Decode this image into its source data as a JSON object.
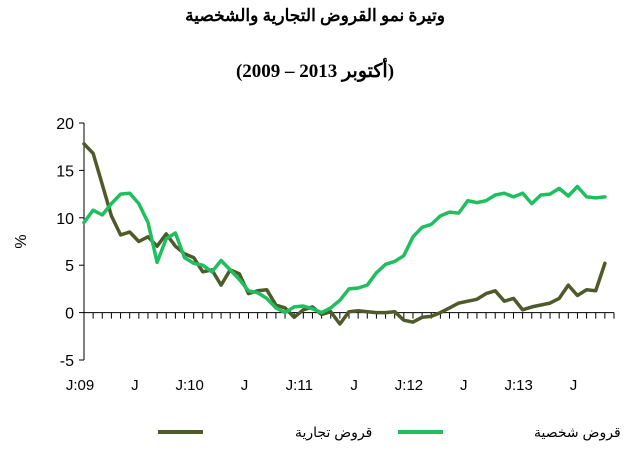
{
  "title_line1": "وتيرة نمو القروض التجارية والشخصية",
  "title_line2": "(2009 – أكتوبر 2013)",
  "chart_data": {
    "type": "line",
    "title": "وتيرة نمو القروض التجارية والشخصية (2009 – أكتوبر 2013)",
    "ylabel": "%",
    "xlabel": "",
    "ylim": [
      -5,
      20
    ],
    "yticks": [
      "20",
      "15",
      "10",
      "5",
      "0",
      "-5"
    ],
    "yticks_values": [
      20,
      15,
      10,
      5,
      0,
      -5
    ],
    "xlim": [
      0,
      58
    ],
    "xticks": [
      {
        "label": "J:09",
        "x": 0
      },
      {
        "label": "J",
        "x": 6
      },
      {
        "label": "J:10",
        "x": 12
      },
      {
        "label": "J",
        "x": 18
      },
      {
        "label": "J:11",
        "x": 24
      },
      {
        "label": "J",
        "x": 30
      },
      {
        "label": "J:12",
        "x": 36
      },
      {
        "label": "J",
        "x": 42
      },
      {
        "label": "J:13",
        "x": 48
      },
      {
        "label": "J",
        "x": 54
      }
    ],
    "grid": false,
    "legend_position": "bottom",
    "series": [
      {
        "name": "قروض تجارية",
        "color": "#4f5a2a",
        "x": [
          0,
          1,
          2,
          3,
          4,
          5,
          6,
          7,
          8,
          9,
          10,
          11,
          12,
          13,
          14,
          15,
          16,
          17,
          18,
          19,
          20,
          21,
          22,
          23,
          24,
          25,
          26,
          27,
          28,
          29,
          30,
          31,
          32,
          33,
          34,
          35,
          36,
          37,
          38,
          39,
          40,
          41,
          42,
          43,
          44,
          45,
          46,
          47,
          48,
          49,
          50,
          51,
          52,
          53,
          54,
          55,
          56,
          57
        ],
        "values": [
          17.8,
          16.8,
          13.5,
          10.2,
          8.2,
          8.5,
          7.5,
          8.0,
          7.0,
          8.3,
          7.0,
          6.2,
          5.8,
          4.3,
          4.5,
          2.9,
          4.5,
          4.1,
          2.0,
          2.3,
          2.4,
          0.8,
          0.5,
          -0.5,
          0.3,
          0.6,
          -0.2,
          0.1,
          -1.2,
          0.1,
          0.2,
          0.1,
          0.0,
          0.0,
          0.1,
          -0.8,
          -1.0,
          -0.5,
          -0.4,
          0.0,
          0.5,
          1.0,
          1.2,
          1.4,
          2.0,
          2.3,
          1.2,
          1.5,
          0.3,
          0.6,
          0.8,
          1.0,
          1.5,
          2.9,
          1.8,
          2.4,
          2.3,
          5.2
        ]
      },
      {
        "name": "قروض شخصية",
        "color": "#1fbf5f",
        "x": [
          0,
          1,
          2,
          3,
          4,
          5,
          6,
          7,
          8,
          9,
          10,
          11,
          12,
          13,
          14,
          15,
          16,
          17,
          18,
          19,
          20,
          21,
          22,
          23,
          24,
          25,
          26,
          27,
          28,
          29,
          30,
          31,
          32,
          33,
          34,
          35,
          36,
          37,
          38,
          39,
          40,
          41,
          42,
          43,
          44,
          45,
          46,
          47,
          48,
          49,
          50,
          51,
          52,
          53,
          54,
          55,
          56,
          57
        ],
        "values": [
          9.5,
          10.8,
          10.3,
          11.5,
          12.5,
          12.6,
          11.5,
          9.5,
          5.3,
          7.8,
          8.4,
          5.8,
          5.2,
          5.0,
          4.3,
          5.5,
          4.5,
          3.5,
          2.3,
          2.1,
          1.5,
          0.5,
          0.0,
          0.6,
          0.7,
          0.4,
          0.0,
          0.5,
          1.3,
          2.5,
          2.6,
          2.9,
          4.2,
          5.1,
          5.4,
          6.0,
          8.0,
          9.0,
          9.3,
          10.2,
          10.6,
          10.5,
          11.8,
          11.6,
          11.8,
          12.4,
          12.6,
          12.2,
          12.6,
          11.5,
          12.4,
          12.5,
          13.1,
          12.3,
          13.3,
          12.2,
          12.1,
          12.2
        ]
      }
    ]
  }
}
